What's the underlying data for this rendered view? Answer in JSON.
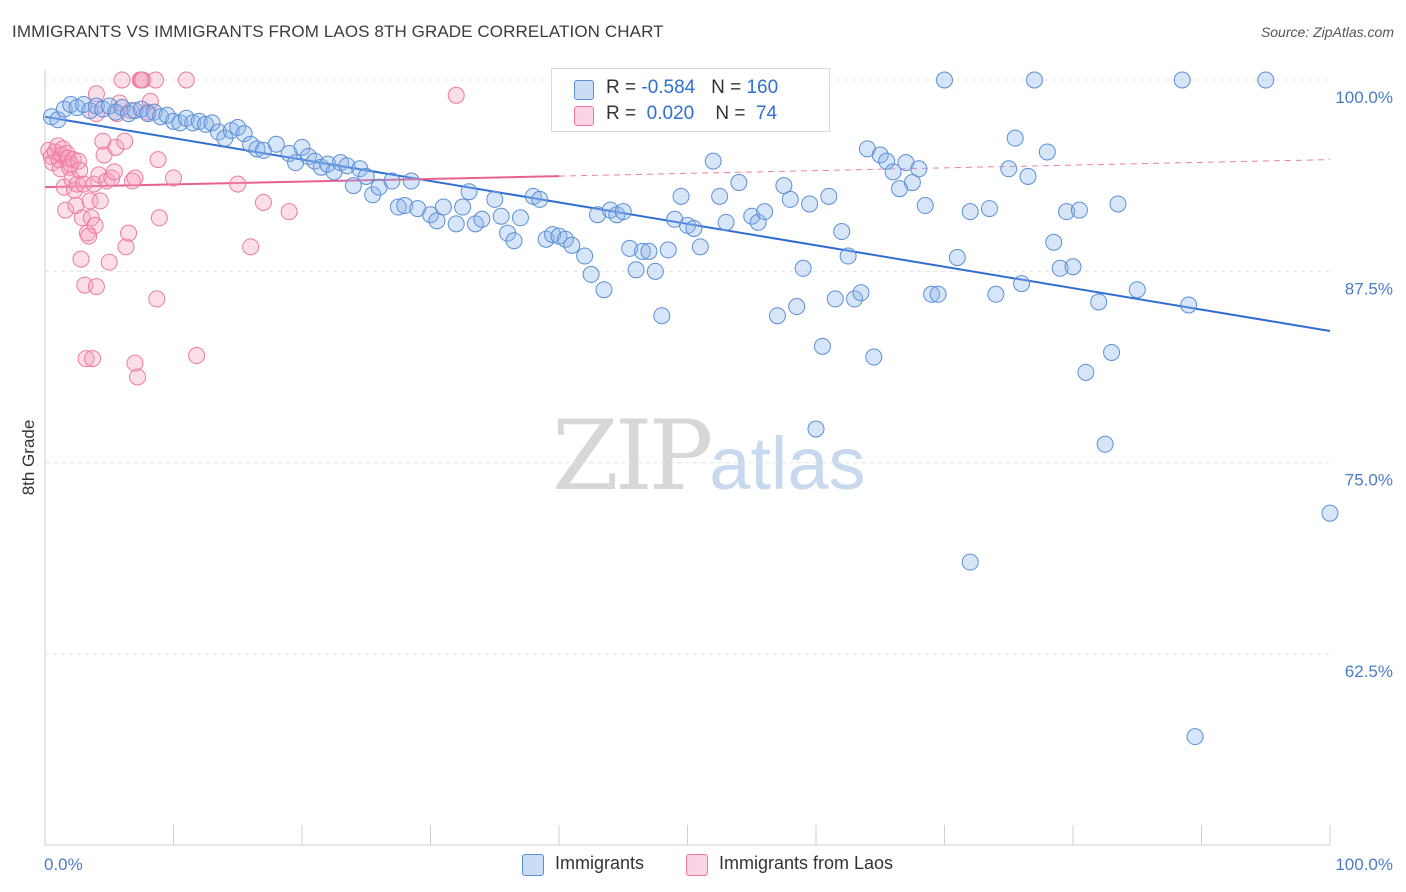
{
  "header": {
    "title": "IMMIGRANTS VS IMMIGRANTS FROM LAOS 8TH GRADE CORRELATION CHART",
    "source": "Source: ZipAtlas.com"
  },
  "legend_box": {
    "row1": {
      "r_label": "R = ",
      "r_value": "-0.584",
      "n_label": "N = ",
      "n_value": "160"
    },
    "row2": {
      "r_label": "R = ",
      "r_value": "0.020",
      "n_label": "N = ",
      "n_value": "74"
    }
  },
  "bottom_legend": {
    "series1": "Immigrants",
    "series2": "Immigrants from Laos"
  },
  "watermark": {
    "zip": "ZIP",
    "atlas": "atlas"
  },
  "colors": {
    "blue": "#5b8fd6",
    "blue_fill": "rgba(140,180,235,0.35)",
    "blue_line": "#2e6fd1",
    "pink": "#ec7aa0",
    "pink_fill": "rgba(245,160,190,0.35)",
    "pink_line": "#e8608e"
  },
  "chart_data": {
    "type": "scatter",
    "title": "IMMIGRANTS VS IMMIGRANTS FROM LAOS 8TH GRADE CORRELATION CHART",
    "xlabel": "",
    "ylabel": "8th Grade",
    "xlim": [
      0,
      100
    ],
    "ylim": [
      50,
      102
    ],
    "x_tick_labels": [
      "0.0%",
      "100.0%"
    ],
    "y_ticks": [
      62.5,
      75.0,
      87.5,
      100.0
    ],
    "y_tick_labels": [
      "62.5%",
      "75.0%",
      "87.5%",
      "100.0%"
    ],
    "grid": true,
    "legend": "top-center",
    "series": [
      {
        "name": "Immigrants",
        "r": -0.584,
        "n": 160,
        "trend": {
          "x0": 0,
          "y0": 97.6,
          "x1": 100,
          "y1": 83.6
        },
        "points": [
          [
            0.5,
            97.6
          ],
          [
            1,
            97.4
          ],
          [
            1.5,
            98.1
          ],
          [
            2,
            98.4
          ],
          [
            2.5,
            98.2
          ],
          [
            3,
            98.4
          ],
          [
            3.5,
            98.0
          ],
          [
            4,
            98.3
          ],
          [
            4.5,
            98.1
          ],
          [
            5,
            98.3
          ],
          [
            5.5,
            97.9
          ],
          [
            6,
            98.2
          ],
          [
            6.5,
            97.8
          ],
          [
            7,
            98.0
          ],
          [
            7.5,
            98.1
          ],
          [
            8,
            97.8
          ],
          [
            8.5,
            97.9
          ],
          [
            9,
            97.6
          ],
          [
            9.5,
            97.7
          ],
          [
            10,
            97.3
          ],
          [
            10.5,
            97.2
          ],
          [
            11,
            97.5
          ],
          [
            11.5,
            97.2
          ],
          [
            12,
            97.3
          ],
          [
            12.5,
            97.1
          ],
          [
            13,
            97.2
          ],
          [
            13.5,
            96.6
          ],
          [
            14,
            96.2
          ],
          [
            14.5,
            96.7
          ],
          [
            15,
            96.9
          ],
          [
            15.5,
            96.5
          ],
          [
            16,
            95.8
          ],
          [
            16.5,
            95.5
          ],
          [
            17,
            95.4
          ],
          [
            18,
            95.8
          ],
          [
            19,
            95.2
          ],
          [
            19.5,
            94.6
          ],
          [
            20,
            95.6
          ],
          [
            20.5,
            95.0
          ],
          [
            21,
            94.7
          ],
          [
            21.5,
            94.3
          ],
          [
            22,
            94.5
          ],
          [
            22.5,
            94.0
          ],
          [
            23,
            94.6
          ],
          [
            23.5,
            94.4
          ],
          [
            24,
            93.1
          ],
          [
            24.5,
            94.2
          ],
          [
            25,
            93.7
          ],
          [
            25.5,
            92.5
          ],
          [
            26,
            93.0
          ],
          [
            27,
            93.4
          ],
          [
            27.5,
            91.7
          ],
          [
            28,
            91.8
          ],
          [
            28.5,
            93.4
          ],
          [
            29,
            91.6
          ],
          [
            30,
            91.2
          ],
          [
            30.5,
            90.8
          ],
          [
            31,
            91.7
          ],
          [
            32,
            90.6
          ],
          [
            32.5,
            91.7
          ],
          [
            33,
            92.7
          ],
          [
            33.5,
            90.6
          ],
          [
            34,
            90.9
          ],
          [
            35,
            92.2
          ],
          [
            35.5,
            91.1
          ],
          [
            36,
            90.0
          ],
          [
            36.5,
            89.5
          ],
          [
            37,
            91.0
          ],
          [
            38,
            92.4
          ],
          [
            38.5,
            92.2
          ],
          [
            39,
            89.6
          ],
          [
            39.5,
            89.9
          ],
          [
            40,
            89.8
          ],
          [
            40.5,
            89.6
          ],
          [
            41,
            89.2
          ],
          [
            42,
            88.5
          ],
          [
            42.5,
            87.3
          ],
          [
            43,
            91.2
          ],
          [
            43.5,
            86.3
          ],
          [
            44,
            91.5
          ],
          [
            44.5,
            91.2
          ],
          [
            45,
            91.4
          ],
          [
            45.5,
            89.0
          ],
          [
            46,
            87.6
          ],
          [
            46.5,
            88.8
          ],
          [
            47,
            88.8
          ],
          [
            47.5,
            87.5
          ],
          [
            48,
            84.6
          ],
          [
            48.5,
            88.9
          ],
          [
            49,
            90.9
          ],
          [
            49.5,
            92.4
          ],
          [
            50,
            90.5
          ],
          [
            50.5,
            90.3
          ],
          [
            51,
            89.1
          ],
          [
            52,
            94.7
          ],
          [
            52.5,
            92.4
          ],
          [
            53,
            90.7
          ],
          [
            54,
            93.3
          ],
          [
            55,
            91.1
          ],
          [
            55.5,
            90.7
          ],
          [
            56,
            91.4
          ],
          [
            57,
            84.6
          ],
          [
            57.5,
            93.1
          ],
          [
            58,
            92.2
          ],
          [
            58.5,
            85.2
          ],
          [
            59,
            87.7
          ],
          [
            59.5,
            91.9
          ],
          [
            60,
            77.2
          ],
          [
            60.5,
            82.6
          ],
          [
            61,
            92.4
          ],
          [
            61.5,
            85.7
          ],
          [
            62,
            90.1
          ],
          [
            62.5,
            88.5
          ],
          [
            63,
            85.7
          ],
          [
            63.5,
            86.1
          ],
          [
            64,
            95.5
          ],
          [
            64.5,
            81.9
          ],
          [
            65,
            95.1
          ],
          [
            65.5,
            94.7
          ],
          [
            66,
            94.0
          ],
          [
            66.5,
            92.9
          ],
          [
            67,
            94.6
          ],
          [
            67.5,
            93.3
          ],
          [
            68,
            94.2
          ],
          [
            68.5,
            91.8
          ],
          [
            69,
            86.0
          ],
          [
            69.5,
            86.0
          ],
          [
            70,
            100.0
          ],
          [
            71,
            88.4
          ],
          [
            72,
            91.4
          ],
          [
            72,
            68.5
          ],
          [
            73.5,
            91.6
          ],
          [
            74,
            86.0
          ],
          [
            75,
            94.2
          ],
          [
            75.5,
            96.2
          ],
          [
            76,
            86.7
          ],
          [
            76.5,
            93.7
          ],
          [
            77,
            100.0
          ],
          [
            78,
            95.3
          ],
          [
            78.5,
            89.4
          ],
          [
            79,
            87.7
          ],
          [
            79.5,
            91.4
          ],
          [
            80,
            87.8
          ],
          [
            80.5,
            91.5
          ],
          [
            81,
            80.9
          ],
          [
            82,
            85.5
          ],
          [
            82.5,
            76.2
          ],
          [
            83,
            82.2
          ],
          [
            83.5,
            91.9
          ],
          [
            85,
            86.3
          ],
          [
            88.5,
            100.0
          ],
          [
            89,
            85.3
          ],
          [
            89.5,
            57.1
          ],
          [
            95,
            100.0
          ],
          [
            100,
            71.7
          ]
        ]
      },
      {
        "name": "Immigrants from Laos",
        "r": 0.02,
        "n": 74,
        "trend": {
          "x0": 0,
          "y0": 93.0,
          "x1": 100,
          "y1": 94.8,
          "solid_until": 40
        },
        "points": [
          [
            0.3,
            95.4
          ],
          [
            0.5,
            95.0
          ],
          [
            0.6,
            94.6
          ],
          [
            0.8,
            95.3
          ],
          [
            1,
            95.7
          ],
          [
            1.1,
            94.8
          ],
          [
            1.2,
            94.2
          ],
          [
            1.3,
            95.1
          ],
          [
            1.4,
            95.5
          ],
          [
            1.5,
            93.0
          ],
          [
            1.6,
            91.5
          ],
          [
            1.7,
            95.2
          ],
          [
            1.8,
            94.9
          ],
          [
            1.9,
            94.3
          ],
          [
            2,
            94.5
          ],
          [
            2.1,
            93.5
          ],
          [
            2.2,
            94.8
          ],
          [
            2.3,
            92.8
          ],
          [
            2.4,
            91.8
          ],
          [
            2.5,
            93.2
          ],
          [
            2.6,
            94.7
          ],
          [
            2.7,
            94.1
          ],
          [
            2.8,
            88.3
          ],
          [
            2.9,
            91.0
          ],
          [
            3,
            93.2
          ],
          [
            3.1,
            86.6
          ],
          [
            3.2,
            81.8
          ],
          [
            3.3,
            90.0
          ],
          [
            3.4,
            89.8
          ],
          [
            3.5,
            92.1
          ],
          [
            3.6,
            91.0
          ],
          [
            3.7,
            81.8
          ],
          [
            3.8,
            93.2
          ],
          [
            3.9,
            90.5
          ],
          [
            4,
            86.5
          ],
          [
            4,
            99.1
          ],
          [
            4,
            97.8
          ],
          [
            4.2,
            93.8
          ],
          [
            4.3,
            92.1
          ],
          [
            4.5,
            96.0
          ],
          [
            4.6,
            95.1
          ],
          [
            4.8,
            93.4
          ],
          [
            5,
            88.1
          ],
          [
            5.2,
            93.6
          ],
          [
            5.4,
            94.0
          ],
          [
            5.5,
            95.6
          ],
          [
            5.6,
            97.8
          ],
          [
            5.8,
            98.5
          ],
          [
            6,
            100.0
          ],
          [
            6.2,
            96.0
          ],
          [
            6.3,
            89.1
          ],
          [
            6.5,
            90.0
          ],
          [
            6.7,
            98.0
          ],
          [
            6.8,
            93.4
          ],
          [
            7,
            93.6
          ],
          [
            7,
            81.5
          ],
          [
            7.2,
            80.6
          ],
          [
            7.4,
            100.0
          ],
          [
            7.5,
            100.0
          ],
          [
            7.6,
            100.0
          ],
          [
            8,
            97.9
          ],
          [
            8.2,
            98.6
          ],
          [
            8.6,
            100.0
          ],
          [
            8.7,
            85.7
          ],
          [
            8.8,
            94.8
          ],
          [
            8.9,
            91.0
          ],
          [
            10,
            93.6
          ],
          [
            11,
            100.0
          ],
          [
            11.8,
            82.0
          ],
          [
            15,
            93.2
          ],
          [
            16,
            89.1
          ],
          [
            17,
            92.0
          ],
          [
            19,
            91.4
          ],
          [
            32,
            99.0
          ]
        ]
      }
    ]
  }
}
